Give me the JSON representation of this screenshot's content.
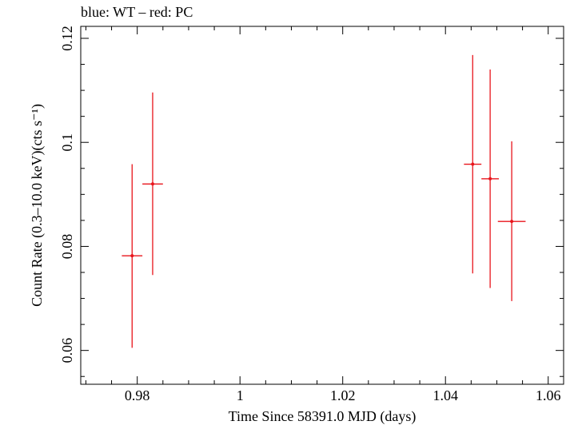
{
  "header": {
    "title": "blue: WT – red: PC"
  },
  "chart_data": {
    "type": "scatter",
    "title": "blue: WT – red: PC",
    "xlabel": "Time Since 58391.0 MJD (days)",
    "ylabel": "Count Rate (0.3–10.0 keV)(cts s⁻¹)",
    "xlim": [
      0.969,
      1.063
    ],
    "ylim": [
      0.0535,
      0.1223
    ],
    "x_ticks": [
      0.98,
      1,
      1.02,
      1.04,
      1.06
    ],
    "x_tick_labels": [
      "0.98",
      "1",
      "1.02",
      "1.04",
      "1.06"
    ],
    "y_ticks": [
      0.06,
      0.08,
      0.1,
      0.12
    ],
    "y_tick_labels": [
      "0.06",
      "0.08",
      "0.1",
      "0.12"
    ],
    "grid": false,
    "series": [
      {
        "name": "PC",
        "color": "#e8141b",
        "points": [
          {
            "x": 0.979,
            "xerr": 0.002,
            "y": 0.0782,
            "ylo": 0.0605,
            "yhi": 0.0958
          },
          {
            "x": 0.983,
            "xerr": 0.002,
            "y": 0.092,
            "ylo": 0.0745,
            "yhi": 0.1096
          },
          {
            "x": 1.0453,
            "xerr": 0.0017,
            "y": 0.0958,
            "ylo": 0.0748,
            "yhi": 0.1168
          },
          {
            "x": 1.0487,
            "xerr": 0.0017,
            "y": 0.093,
            "ylo": 0.072,
            "yhi": 0.114
          },
          {
            "x": 1.0529,
            "xerr": 0.0027,
            "y": 0.0848,
            "ylo": 0.0695,
            "yhi": 0.1002
          }
        ]
      }
    ]
  }
}
